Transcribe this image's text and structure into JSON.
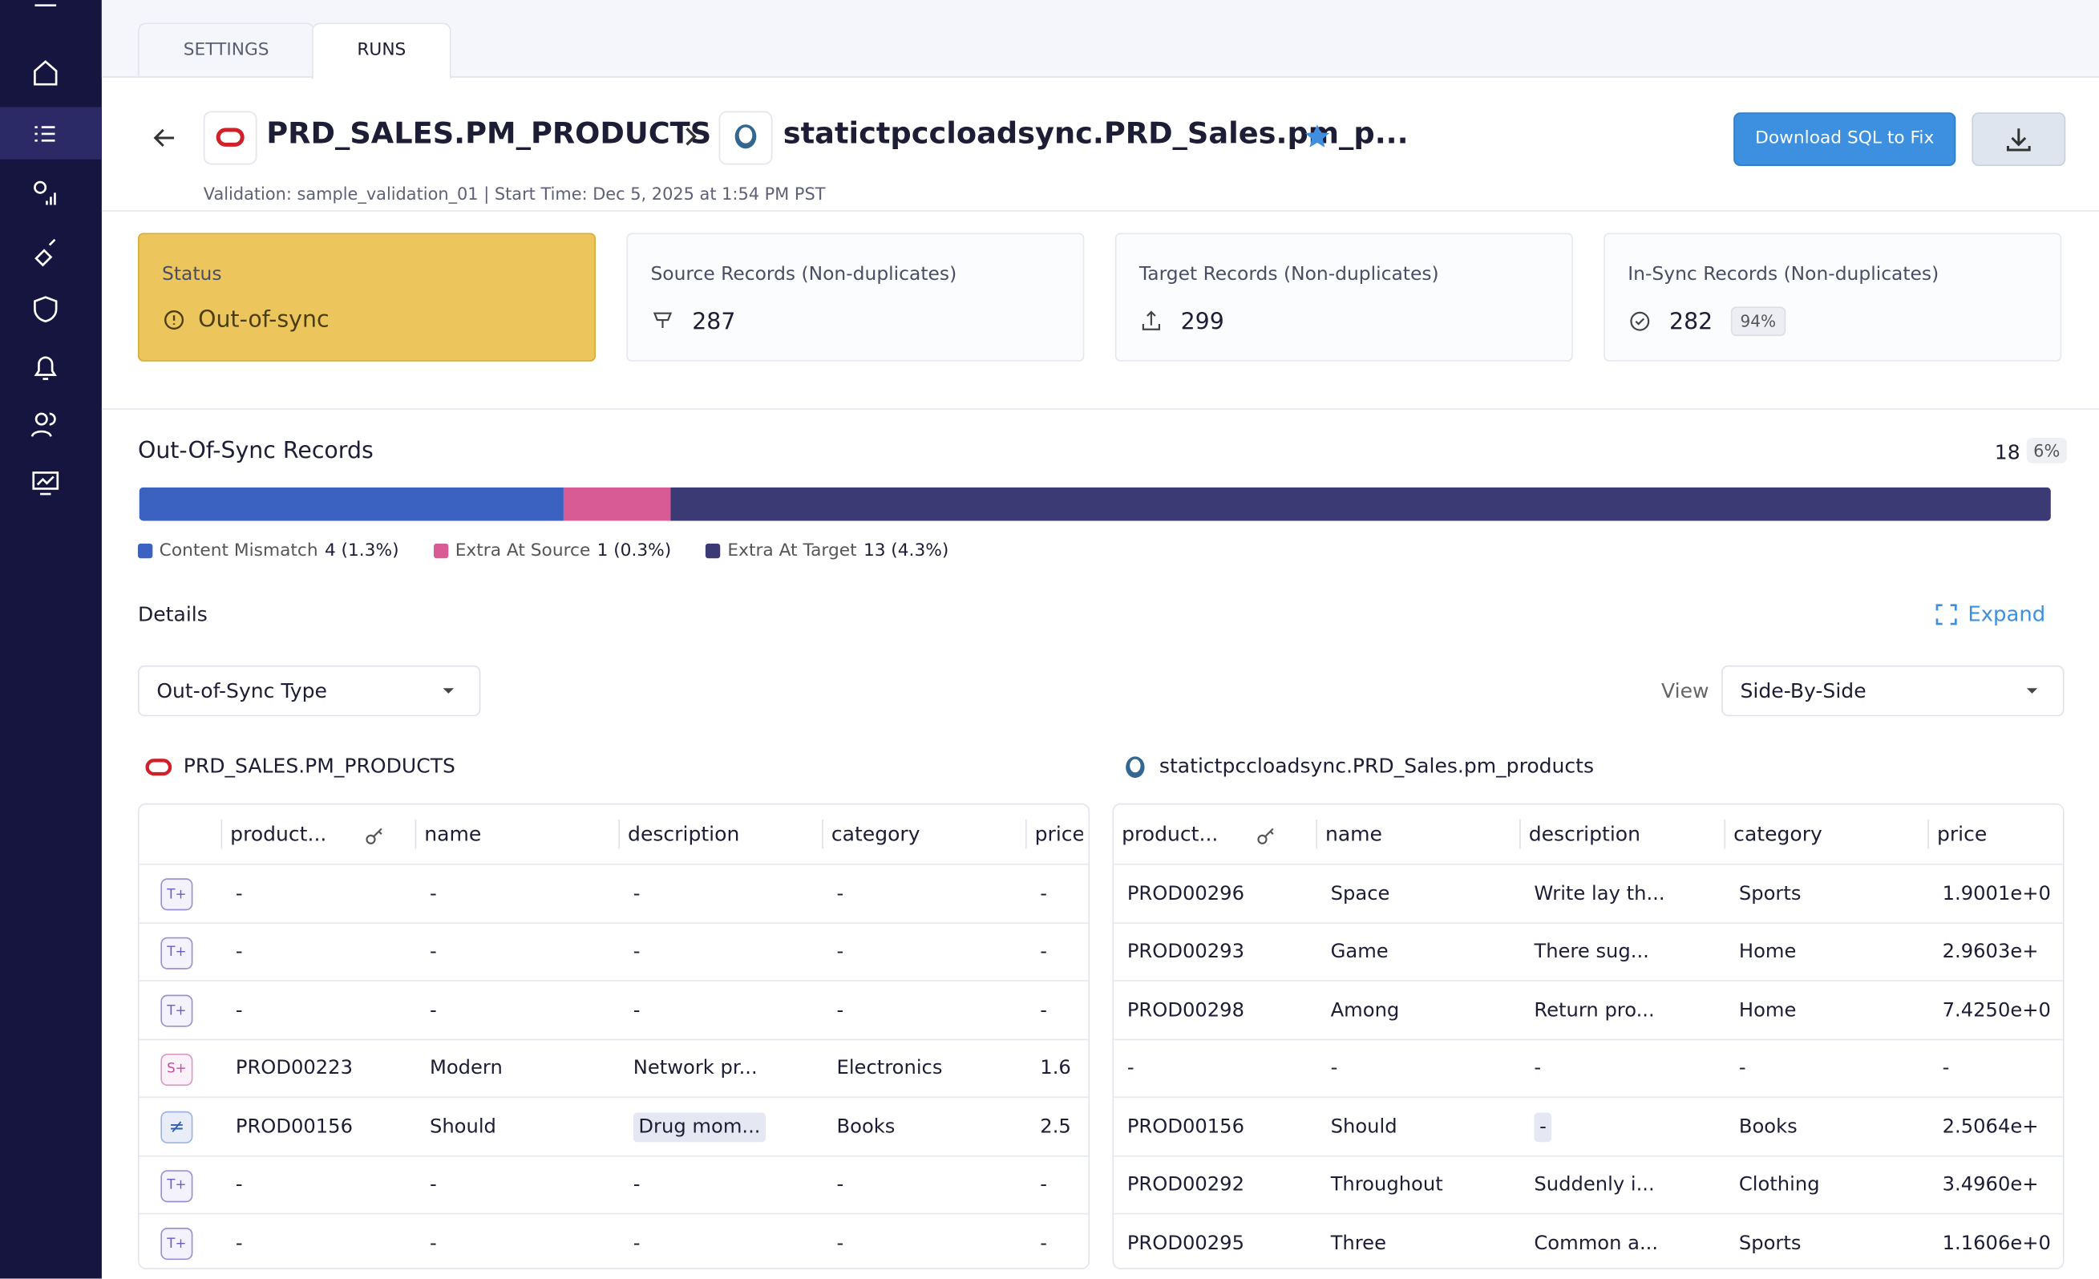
{
  "tabs": [
    "SETTINGS",
    "RUNS"
  ],
  "header": {
    "source": "PRD_SALES.PM_PRODUCTS",
    "target": "statictpccloadsync.PRD_Sales.pm_p...",
    "subtitle": "Validation: sample_validation_01 | Start Time: Dec 5, 2025 at 1:54 PM PST",
    "download_button": "Download SQL to Fix"
  },
  "cards": [
    {
      "label": "Status",
      "value": "Out-of-sync"
    },
    {
      "label": "Source Records (Non-duplicates)",
      "value": "287"
    },
    {
      "label": "Target Records (Non-duplicates)",
      "value": "299"
    },
    {
      "label": "In-Sync Records (Non-duplicates)",
      "value": "282",
      "badge": "94%"
    }
  ],
  "out_of_sync": {
    "title": "Out-Of-Sync Records",
    "total": "18",
    "total_pct": "6%",
    "segments": [
      {
        "name": "Content Mismatch",
        "count": 4,
        "pct": "(1.3%)",
        "color": "#3b62c0"
      },
      {
        "name": "Extra At Source",
        "count": 1,
        "pct": "(0.3%)",
        "color": "#d95b96"
      },
      {
        "name": "Extra At Target",
        "count": 13,
        "pct": "(4.3%)",
        "color": "#3b3a74"
      }
    ]
  },
  "details": {
    "title": "Details",
    "expand": "Expand",
    "filter": "Out-of-Sync Type",
    "view_label": "View",
    "view": "Side-By-Side"
  },
  "source_table": {
    "title": "PRD_SALES.PM_PRODUCTS",
    "columns": [
      "product...",
      "name",
      "description",
      "category",
      "price"
    ],
    "rows": [
      {
        "type": "T+",
        "cells": [
          "-",
          "-",
          "-",
          "-",
          "-"
        ]
      },
      {
        "type": "T+",
        "cells": [
          "-",
          "-",
          "-",
          "-",
          "-"
        ]
      },
      {
        "type": "T+",
        "cells": [
          "-",
          "-",
          "-",
          "-",
          "-"
        ]
      },
      {
        "type": "S+",
        "cells": [
          "PROD00223",
          "Modern",
          "Network pr...",
          "Electronics",
          "1.6"
        ]
      },
      {
        "type": "≠",
        "changed_column": 2,
        "cells": [
          "PROD00156",
          "Should",
          "Drug mom...",
          "Books",
          "2.5"
        ]
      },
      {
        "type": "T+",
        "cells": [
          "-",
          "-",
          "-",
          "-",
          "-"
        ]
      },
      {
        "type": "T+",
        "cells": [
          "-",
          "-",
          "-",
          "-",
          "-"
        ]
      }
    ]
  },
  "target_table": {
    "title": "statictpccloadsync.PRD_Sales.pm_products",
    "columns": [
      "product...",
      "name",
      "description",
      "category",
      "price"
    ],
    "rows": [
      {
        "cells": [
          "PROD00296",
          "Space",
          "Write lay th...",
          "Sports",
          "1.9001e+0"
        ]
      },
      {
        "cells": [
          "PROD00293",
          "Game",
          "There sug...",
          "Home",
          "2.9603e+"
        ]
      },
      {
        "cells": [
          "PROD00298",
          "Among",
          "Return pro...",
          "Home",
          "7.4250e+0"
        ]
      },
      {
        "cells": [
          "-",
          "-",
          "-",
          "-",
          "-"
        ]
      },
      {
        "changed_column": 2,
        "cells": [
          "PROD00156",
          "Should",
          "-",
          "Books",
          "2.5064e+"
        ]
      },
      {
        "cells": [
          "PROD00292",
          "Throughout",
          "Suddenly i...",
          "Clothing",
          "3.4960e+"
        ]
      },
      {
        "cells": [
          "PROD00295",
          "Three",
          "Common a...",
          "Sports",
          "1.1606e+0"
        ]
      }
    ]
  }
}
